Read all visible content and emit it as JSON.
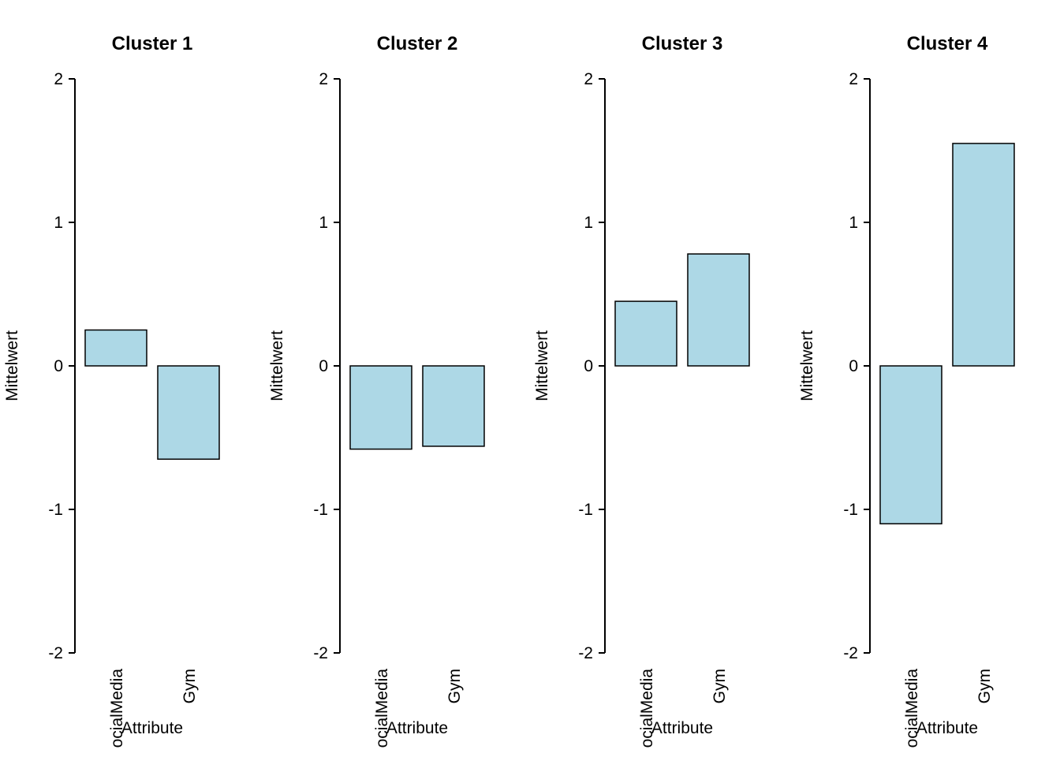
{
  "chart_data": [
    {
      "type": "bar",
      "title": "Cluster 1",
      "ylabel": "Mittelwert",
      "xlabel": "Attribute",
      "ylim": [
        -2,
        2
      ],
      "yticks": [
        -2,
        -1,
        0,
        1,
        2
      ],
      "categories": [
        "ocialMedia",
        "Gym"
      ],
      "values": [
        0.25,
        -0.65
      ],
      "bar_color": "#add8e6",
      "bar_border": "#000000"
    },
    {
      "type": "bar",
      "title": "Cluster 2",
      "ylabel": "Mittelwert",
      "xlabel": "Attribute",
      "ylim": [
        -2,
        2
      ],
      "yticks": [
        -2,
        -1,
        0,
        1,
        2
      ],
      "categories": [
        "ocialMedia",
        "Gym"
      ],
      "values": [
        -0.58,
        -0.56
      ],
      "bar_color": "#add8e6",
      "bar_border": "#000000"
    },
    {
      "type": "bar",
      "title": "Cluster 3",
      "ylabel": "Mittelwert",
      "xlabel": "Attribute",
      "ylim": [
        -2,
        2
      ],
      "yticks": [
        -2,
        -1,
        0,
        1,
        2
      ],
      "categories": [
        "ocialMedia",
        "Gym"
      ],
      "values": [
        0.45,
        0.78
      ],
      "bar_color": "#add8e6",
      "bar_border": "#000000"
    },
    {
      "type": "bar",
      "title": "Cluster 4",
      "ylabel": "Mittelwert",
      "xlabel": "Attribute",
      "ylim": [
        -2,
        2
      ],
      "yticks": [
        -2,
        -1,
        0,
        1,
        2
      ],
      "categories": [
        "ocialMedia",
        "Gym"
      ],
      "values": [
        -1.1,
        1.55
      ],
      "bar_color": "#add8e6",
      "bar_border": "#000000"
    }
  ]
}
